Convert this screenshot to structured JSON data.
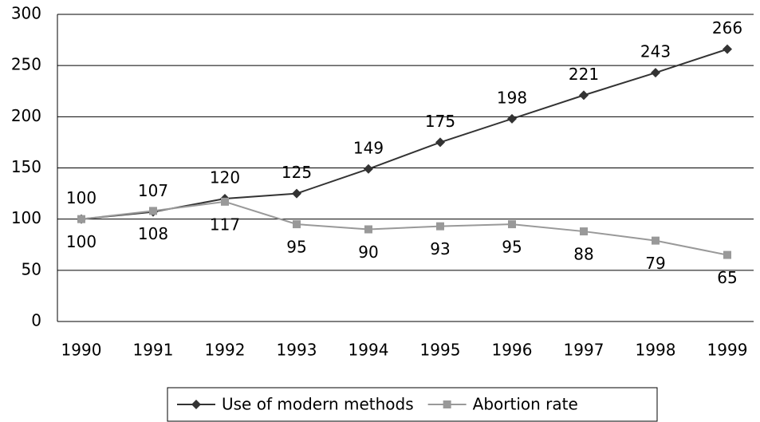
{
  "chart_data": {
    "type": "line",
    "categories": [
      "1990",
      "1991",
      "1992",
      "1993",
      "1994",
      "1995",
      "1996",
      "1997",
      "1998",
      "1999"
    ],
    "series": [
      {
        "name": "Use of modern methods",
        "color": "#333333",
        "marker": "diamond",
        "values": [
          100,
          107,
          120,
          125,
          149,
          175,
          198,
          221,
          243,
          266
        ]
      },
      {
        "name": "Abortion rate",
        "color": "#999999",
        "marker": "square",
        "values": [
          100,
          108,
          117,
          95,
          90,
          93,
          95,
          88,
          79,
          65
        ]
      }
    ],
    "ylim": [
      0,
      300
    ],
    "yticks": [
      0,
      50,
      100,
      150,
      200,
      250,
      300
    ],
    "grid": true,
    "legend": "bottom"
  }
}
